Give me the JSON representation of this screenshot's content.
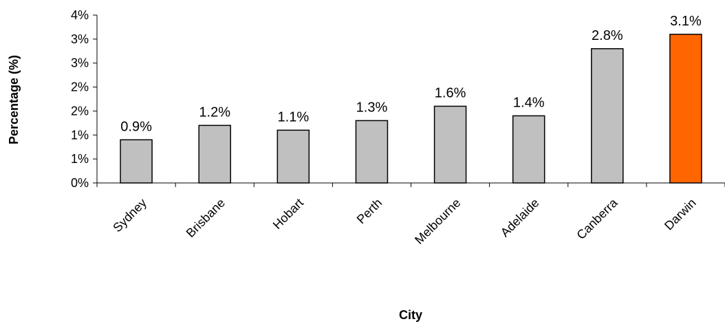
{
  "chart_data": {
    "type": "bar",
    "title": "",
    "xlabel": "City",
    "ylabel": "Percentage (%)",
    "categories": [
      "Sydney",
      "Brisbane",
      "Hobart",
      "Perth",
      "Melbourne",
      "Adelaide",
      "Canberra",
      "Darwin"
    ],
    "values": [
      0.9,
      1.2,
      1.1,
      1.3,
      1.6,
      1.4,
      2.8,
      3.1
    ],
    "data_labels": [
      "0.9%",
      "1.2%",
      "1.1%",
      "1.3%",
      "1.6%",
      "1.4%",
      "2.8%",
      "3.1%"
    ],
    "y_tick_labels": [
      "0%",
      "1%",
      "1%",
      "2%",
      "2%",
      "3%",
      "3%",
      "4%"
    ],
    "ylim": [
      0,
      3.5
    ],
    "grid": false,
    "legend": "none",
    "colors": {
      "bar_default": "#c0c0c0",
      "bar_highlight": "#ff6600",
      "bar_stroke": "#000000",
      "axis": "#000000"
    },
    "highlight_category": "Darwin"
  }
}
